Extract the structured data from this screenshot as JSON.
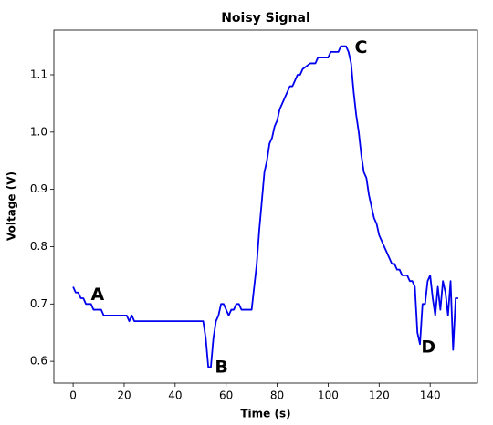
{
  "chart_data": {
    "type": "line",
    "title": "Noisy Signal",
    "x_label": "Time (s)",
    "y_label": "Voltage (V)",
    "x": [
      0,
      1,
      2,
      3,
      4,
      5,
      7,
      8,
      11,
      12,
      21,
      22,
      23,
      24,
      51,
      52,
      53,
      54,
      55,
      56,
      57,
      58,
      59,
      60,
      61,
      62,
      63,
      64,
      65,
      66,
      70,
      72,
      73,
      74,
      75,
      76,
      77,
      78,
      79,
      80,
      81,
      83,
      85,
      86,
      87,
      88,
      89,
      90,
      93,
      95,
      96,
      100,
      101,
      104,
      105,
      107,
      108,
      109,
      110,
      111,
      112,
      113,
      114,
      115,
      116,
      117,
      118,
      119,
      120,
      121,
      122,
      123,
      124,
      125,
      126,
      127,
      128,
      129,
      131,
      132,
      133,
      134,
      135,
      136,
      137,
      138,
      139,
      140,
      141,
      142,
      143,
      144,
      145,
      146,
      147,
      148,
      149,
      150,
      151
    ],
    "series": [
      {
        "name": "Signal",
        "color": "#0000ee",
        "values": [
          0.73,
          0.72,
          0.72,
          0.71,
          0.71,
          0.7,
          0.7,
          0.69,
          0.69,
          0.68,
          0.68,
          0.67,
          0.68,
          0.67,
          0.67,
          0.64,
          0.59,
          0.59,
          0.64,
          0.67,
          0.68,
          0.7,
          0.7,
          0.69,
          0.68,
          0.69,
          0.69,
          0.7,
          0.7,
          0.69,
          0.69,
          0.77,
          0.83,
          0.88,
          0.93,
          0.95,
          0.98,
          0.99,
          1.01,
          1.02,
          1.04,
          1.06,
          1.08,
          1.08,
          1.09,
          1.1,
          1.1,
          1.11,
          1.12,
          1.12,
          1.13,
          1.13,
          1.14,
          1.14,
          1.15,
          1.15,
          1.14,
          1.12,
          1.07,
          1.03,
          1.0,
          0.96,
          0.93,
          0.92,
          0.89,
          0.87,
          0.85,
          0.84,
          0.82,
          0.81,
          0.8,
          0.79,
          0.78,
          0.77,
          0.77,
          0.76,
          0.76,
          0.75,
          0.75,
          0.74,
          0.74,
          0.73,
          0.65,
          0.63,
          0.7,
          0.7,
          0.74,
          0.75,
          0.71,
          0.68,
          0.73,
          0.69,
          0.74,
          0.72,
          0.68,
          0.74,
          0.62,
          0.71,
          0.71
        ]
      }
    ],
    "xlim": [
      -7.55,
      158.55
    ],
    "ylim": [
      0.562,
      1.178
    ],
    "xticks": [
      0,
      20,
      40,
      60,
      80,
      100,
      120,
      140
    ],
    "yticks": [
      0.6,
      0.7,
      0.8,
      0.9,
      {
        "value": 1,
        "label": "1.0"
      },
      1.1
    ],
    "annotations": [
      {
        "text": "A",
        "x": 9.6,
        "y": 0.716
      },
      {
        "text": "B",
        "x": 58.2,
        "y": 0.589
      },
      {
        "text": "C",
        "x": 112.9,
        "y": 1.147
      },
      {
        "text": "D",
        "x": 139.3,
        "y": 0.624
      }
    ]
  }
}
